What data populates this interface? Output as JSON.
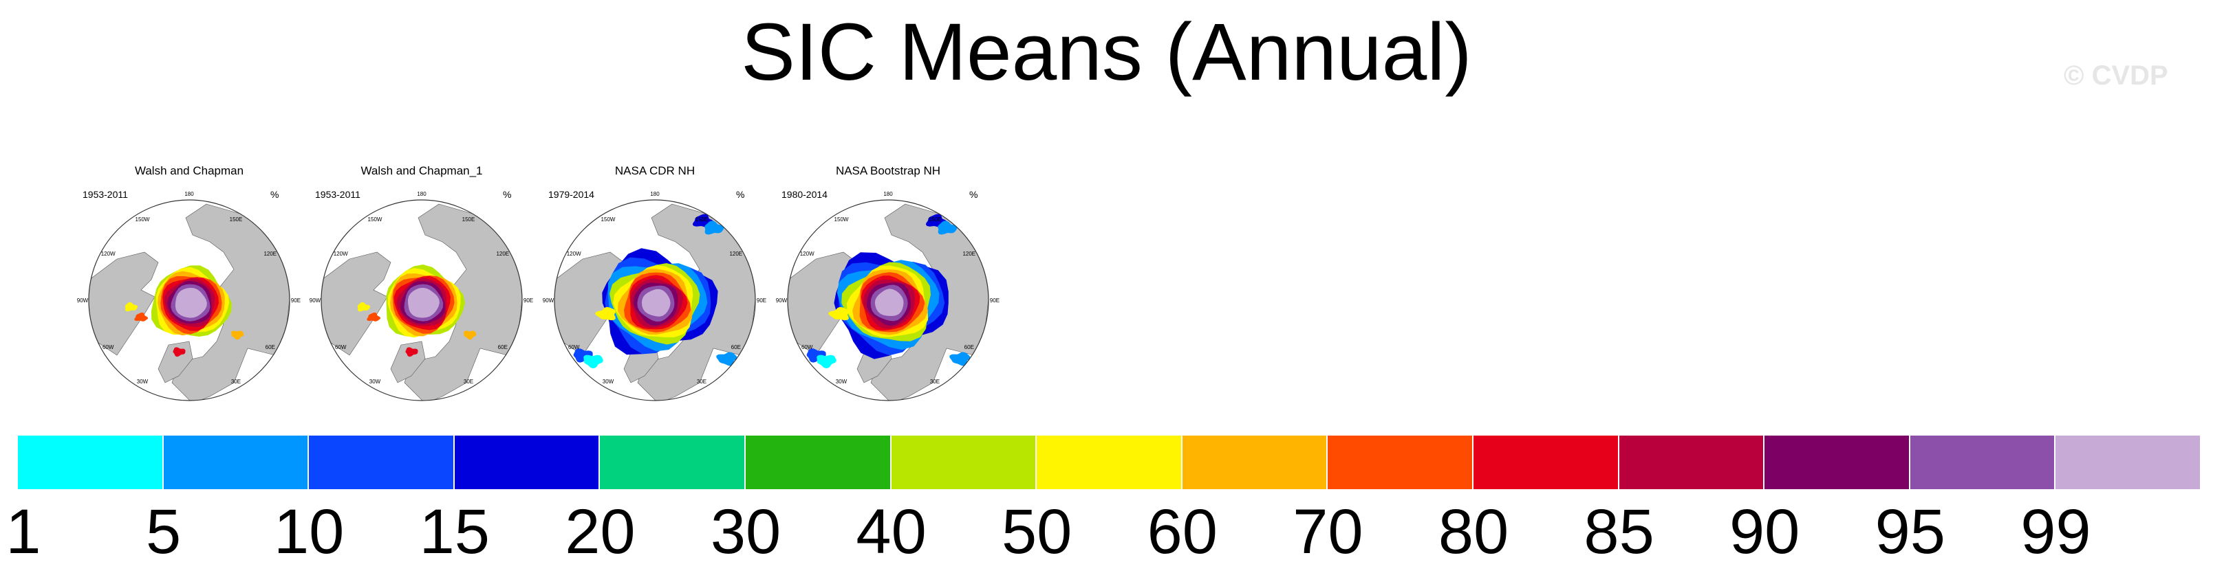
{
  "title": "SIC Means (Annual)",
  "watermark": "© CVDP",
  "panels": [
    {
      "title": "Walsh and Chapman",
      "period": "1953-2011",
      "units": "%",
      "variant": "wc"
    },
    {
      "title": "Walsh and Chapman_1",
      "period": "1953-2011",
      "units": "%",
      "variant": "wc"
    },
    {
      "title": "NASA CDR NH",
      "period": "1979-2014",
      "units": "%",
      "variant": "nasa"
    },
    {
      "title": "NASA Bootstrap NH",
      "period": "1980-2014",
      "units": "%",
      "variant": "nasa"
    }
  ],
  "map_lon_labels": [
    "180",
    "150E",
    "120E",
    "90E",
    "60E",
    "30E",
    "0",
    "30W",
    "60W",
    "90W",
    "120W",
    "150W"
  ],
  "chart_data": {
    "type": "heatmap",
    "title": "SIC Means (Annual)",
    "projection": "north-polar-stereographic",
    "units": "%",
    "colorbar": {
      "levels": [
        1,
        5,
        10,
        15,
        20,
        30,
        40,
        50,
        60,
        70,
        80,
        85,
        90,
        95,
        99
      ],
      "colors": [
        "#00ffff",
        "#0096ff",
        "#0a46ff",
        "#0000dc",
        "#00d27d",
        "#23b40f",
        "#b9e600",
        "#fff500",
        "#ffb400",
        "#ff4b00",
        "#e60019",
        "#b9003c",
        "#7d0064",
        "#8c50aa",
        "#c8aad7"
      ]
    },
    "land_color": "#c0c0c0",
    "ocean_color": "#ffffff"
  }
}
